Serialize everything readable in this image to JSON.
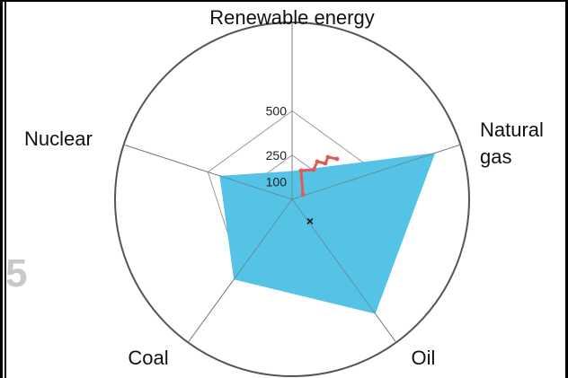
{
  "chart_data": {
    "type": "radar",
    "axes": [
      "Renewable energy",
      "Natural gas",
      "Oil",
      "Coal",
      "Nuclear"
    ],
    "axis_label_lines": [
      [
        "Renewable energy"
      ],
      [
        "Natural",
        "gas"
      ],
      [
        "Oil"
      ],
      [
        "Coal"
      ],
      [
        "Nuclear"
      ]
    ],
    "rings": [
      100,
      250,
      500
    ],
    "ring_labels": [
      "100",
      "250",
      "500"
    ],
    "series": [
      {
        "values": [
          160,
          850,
          800,
          560,
          430
        ],
        "color": "#55c3e6"
      }
    ],
    "trail": {
      "color": "#e05a57",
      "points": [
        [
          12,
          -5
        ],
        [
          10,
          -32
        ],
        [
          24,
          -33
        ],
        [
          28,
          -42
        ],
        [
          37,
          -40
        ],
        [
          40,
          -47
        ],
        [
          50,
          -45
        ]
      ]
    },
    "marker": {
      "symbol": "×",
      "color": "#111111"
    }
  },
  "partial_text": "5"
}
